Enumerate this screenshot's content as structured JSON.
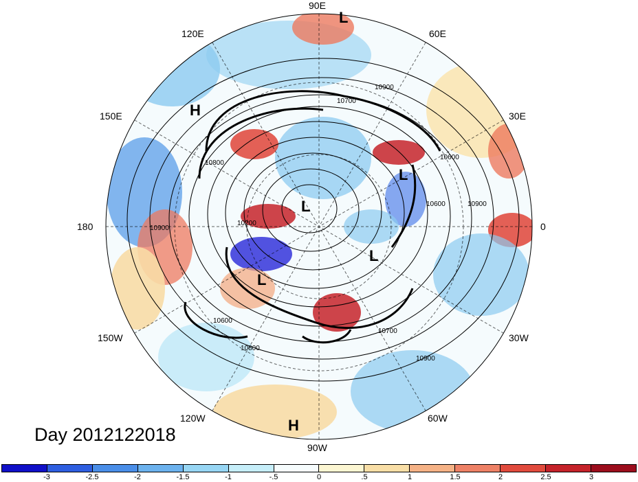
{
  "map": {
    "projection": "polar stereographic, north pole",
    "longitude_labels": [
      {
        "text": "90E",
        "name": "lon-label-90e"
      },
      {
        "text": "60E",
        "name": "lon-label-60e"
      },
      {
        "text": "30E",
        "name": "lon-label-30e"
      },
      {
        "text": "0",
        "name": "lon-label-0"
      },
      {
        "text": "30W",
        "name": "lon-label-30w"
      },
      {
        "text": "60W",
        "name": "lon-label-60w"
      },
      {
        "text": "90W",
        "name": "lon-label-90w"
      },
      {
        "text": "120W",
        "name": "lon-label-120w"
      },
      {
        "text": "150W",
        "name": "lon-label-150w"
      },
      {
        "text": "180",
        "name": "lon-label-180"
      },
      {
        "text": "150E",
        "name": "lon-label-150e"
      },
      {
        "text": "120E",
        "name": "lon-label-120e"
      }
    ],
    "contour_labels": [
      "10900",
      "10700",
      "10800",
      "10600",
      "10600",
      "10900",
      "10900",
      "10200",
      "10600",
      "10800",
      "10700",
      "10900"
    ],
    "pressure_centers": [
      "L",
      "L",
      "L",
      "L",
      "L",
      "H",
      "H"
    ],
    "palette": {
      "deep_blue": "#1a1ad6",
      "blue": "#3a6fe8",
      "mid_blue": "#5a9de8",
      "light_blue": "#8ccbf0",
      "pale_blue": "#bfe9f8",
      "white": "#f4fbfe",
      "pale_yellow": "#fbf6d6",
      "tan": "#f8dca6",
      "orange": "#f3a77c",
      "salmon": "#ee7a5f",
      "red": "#df4438",
      "dark_red": "#b01a1f"
    }
  },
  "caption": "Day 2012122018",
  "colorbar": {
    "colors": [
      "#1010c8",
      "#2e5ee0",
      "#4a8ee8",
      "#6cb2ee",
      "#97d6f4",
      "#c6eef9",
      "#f6fcfd",
      "#fcf6d2",
      "#f8dea6",
      "#f5b286",
      "#ee8166",
      "#e14b3d",
      "#c5232a",
      "#9c0d1d"
    ],
    "labels": [
      "-3",
      "-2.5",
      "-2",
      "-1.5",
      "-1",
      "-.5",
      "0",
      ".5",
      "1",
      "1.5",
      "2",
      "2.5",
      "3"
    ]
  }
}
